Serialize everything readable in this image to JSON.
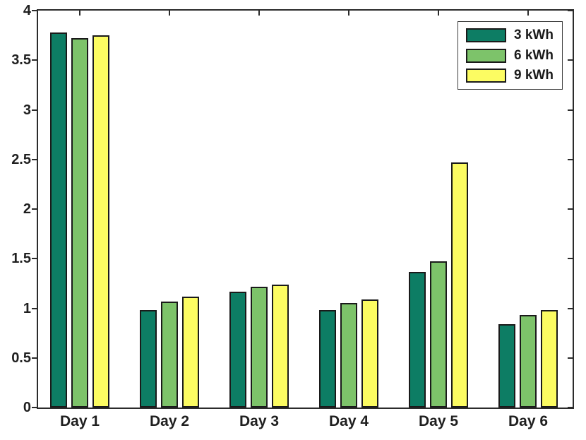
{
  "chart_data": {
    "type": "bar",
    "title": "",
    "xlabel": "",
    "ylabel": "",
    "categories": [
      "Day 1",
      "Day 2",
      "Day 3",
      "Day 4",
      "Day 5",
      "Day 6"
    ],
    "series": [
      {
        "name": "3 kWh",
        "color": "#0d7d64",
        "values": [
          3.78,
          0.98,
          1.17,
          0.98,
          1.37,
          0.84
        ]
      },
      {
        "name": "6 kWh",
        "color": "#7dc36a",
        "values": [
          3.72,
          1.07,
          1.22,
          1.05,
          1.47,
          0.93
        ]
      },
      {
        "name": "9 kWh",
        "color": "#fcfc62",
        "values": [
          3.75,
          1.12,
          1.24,
          1.09,
          2.47,
          0.98
        ]
      }
    ],
    "ylim": [
      0,
      4
    ],
    "yticks": [
      0,
      0.5,
      1,
      1.5,
      2,
      2.5,
      3,
      3.5,
      4
    ],
    "ytick_labels": [
      "0",
      "0.5",
      "1",
      "1.5",
      "2",
      "2.5",
      "3",
      "3.5",
      "4"
    ],
    "grid": false,
    "legend_position": "top-right",
    "colors": {
      "axis": "#2b2b2b",
      "bar_border": "#1a1a1a",
      "text": "#1f1f1f",
      "background": "#ffffff"
    }
  }
}
